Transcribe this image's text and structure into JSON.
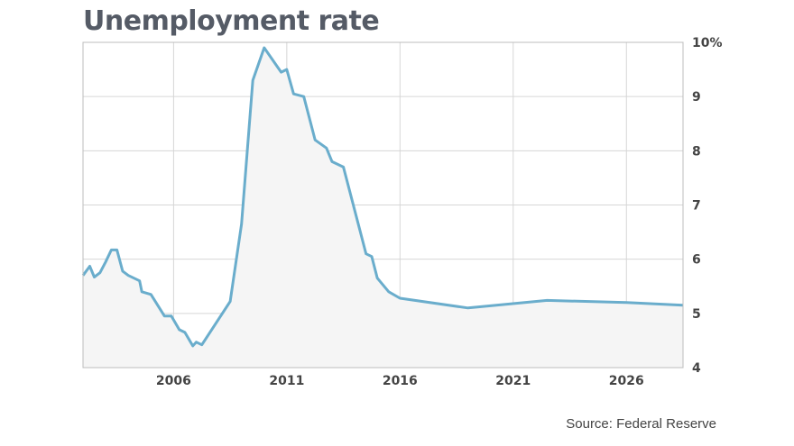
{
  "chart_data": {
    "type": "area",
    "title": "Unemployment rate",
    "source": "Source: Federal Reserve",
    "xlabel": "",
    "ylabel": "",
    "xlim": [
      2002,
      2028.5
    ],
    "ylim": [
      4,
      10
    ],
    "x_ticks": [
      2006,
      2011,
      2016,
      2021,
      2026
    ],
    "x_tick_labels": [
      "2006",
      "2011",
      "2016",
      "2021",
      "2026"
    ],
    "y_ticks": [
      4,
      5,
      6,
      7,
      8,
      9,
      10
    ],
    "y_tick_labels": [
      "4",
      "5",
      "6",
      "7",
      "8",
      "9",
      "10%"
    ],
    "grid": true,
    "y_axis_side": "right",
    "line_color": "#6aadcc",
    "fill_color": "#f5f5f5",
    "series": [
      {
        "x": [
          2002.0,
          2002.3,
          2002.5,
          2002.75,
          2003.0,
          2003.25,
          2003.5,
          2003.75,
          2004.0,
          2004.5,
          2004.6,
          2005.0,
          2005.6,
          2005.9,
          2006.25,
          2006.5,
          2006.85,
          2007.0,
          2007.25,
          2008.5,
          2009.0,
          2009.5,
          2010.0,
          2010.75,
          2011.0,
          2011.3,
          2011.75,
          2012.25,
          2012.75,
          2013.0,
          2013.5,
          2014.5,
          2014.75,
          2015.0,
          2015.5,
          2016.0,
          2019.0,
          2022.5,
          2026.0,
          2028.5
        ],
        "y": [
          5.7,
          5.87,
          5.67,
          5.75,
          5.95,
          6.17,
          6.17,
          5.78,
          5.7,
          5.6,
          5.4,
          5.35,
          4.95,
          4.95,
          4.7,
          4.65,
          4.4,
          4.47,
          4.42,
          5.22,
          6.65,
          9.3,
          9.9,
          9.45,
          9.5,
          9.05,
          9.0,
          8.2,
          8.05,
          7.8,
          7.7,
          6.1,
          6.05,
          5.65,
          5.4,
          5.28,
          5.1,
          5.24,
          5.2,
          5.15
        ]
      }
    ]
  }
}
